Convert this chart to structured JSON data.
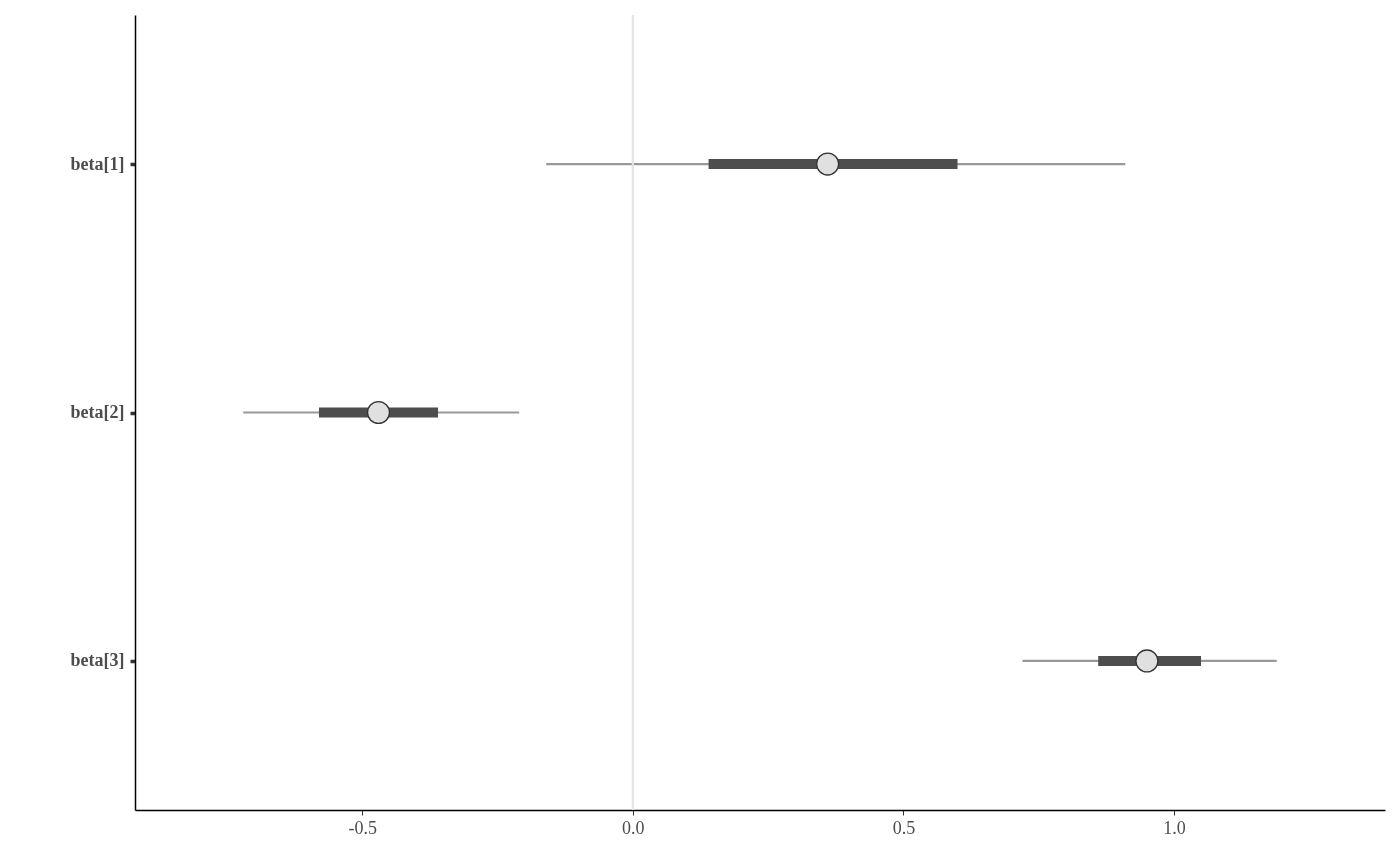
{
  "chart_data": {
    "type": "box",
    "orientation": "horizontal",
    "categories": [
      "beta[1]",
      "beta[2]",
      "beta[3]"
    ],
    "boxes": [
      {
        "low": -0.16,
        "q1": 0.14,
        "median": 0.36,
        "q3": 0.6,
        "high": 0.91
      },
      {
        "low": -0.72,
        "q1": -0.58,
        "median": -0.47,
        "q3": -0.36,
        "high": -0.21
      },
      {
        "low": 0.72,
        "q1": 0.86,
        "median": 0.95,
        "q3": 1.05,
        "high": 1.19
      }
    ],
    "xlim": [
      -0.92,
      1.39
    ],
    "xticks": [
      -0.5,
      {
        "value": 0,
        "label": "0.0"
      },
      0.5,
      {
        "value": 1,
        "label": "1.0"
      }
    ],
    "ref_lines": [
      {
        "axis": "x",
        "value": 0,
        "color": "#e5e5e5"
      }
    ],
    "grid": false
  }
}
